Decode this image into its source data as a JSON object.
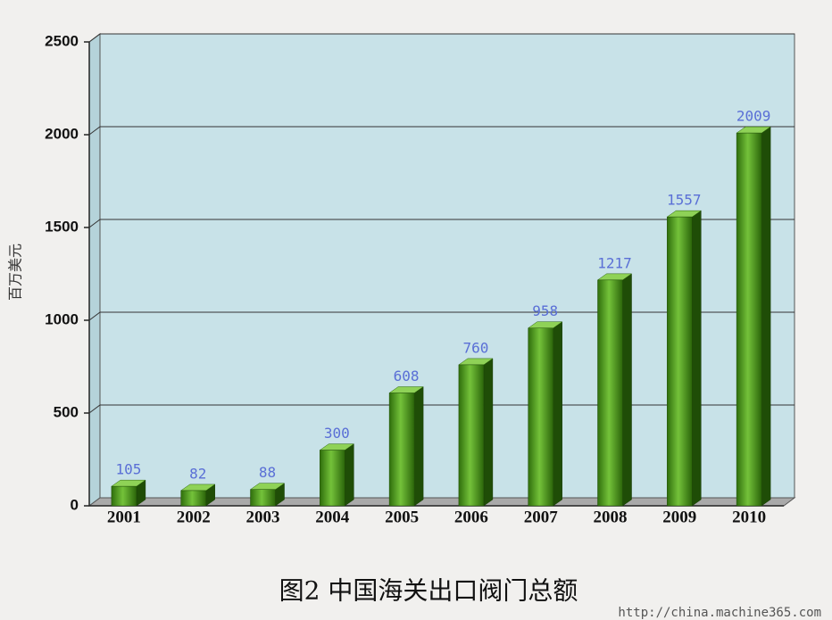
{
  "chart_data": {
    "type": "bar3d",
    "title": "图2  中国海关出口阀门总额",
    "y_label": "百万美元",
    "watermark": "http://china.machine365.com",
    "categories": [
      "2001",
      "2002",
      "2003",
      "2004",
      "2005",
      "2006",
      "2007",
      "2008",
      "2009",
      "2010"
    ],
    "values": [
      105,
      82,
      88,
      300,
      608,
      760,
      958,
      1217,
      1557,
      2009
    ],
    "color": "#3f8f16",
    "label_color": "#5a6fd6",
    "ylim": [
      0,
      2500
    ],
    "yticks": [
      0,
      500,
      1000,
      1500,
      2000,
      2500
    ],
    "grid": true
  }
}
